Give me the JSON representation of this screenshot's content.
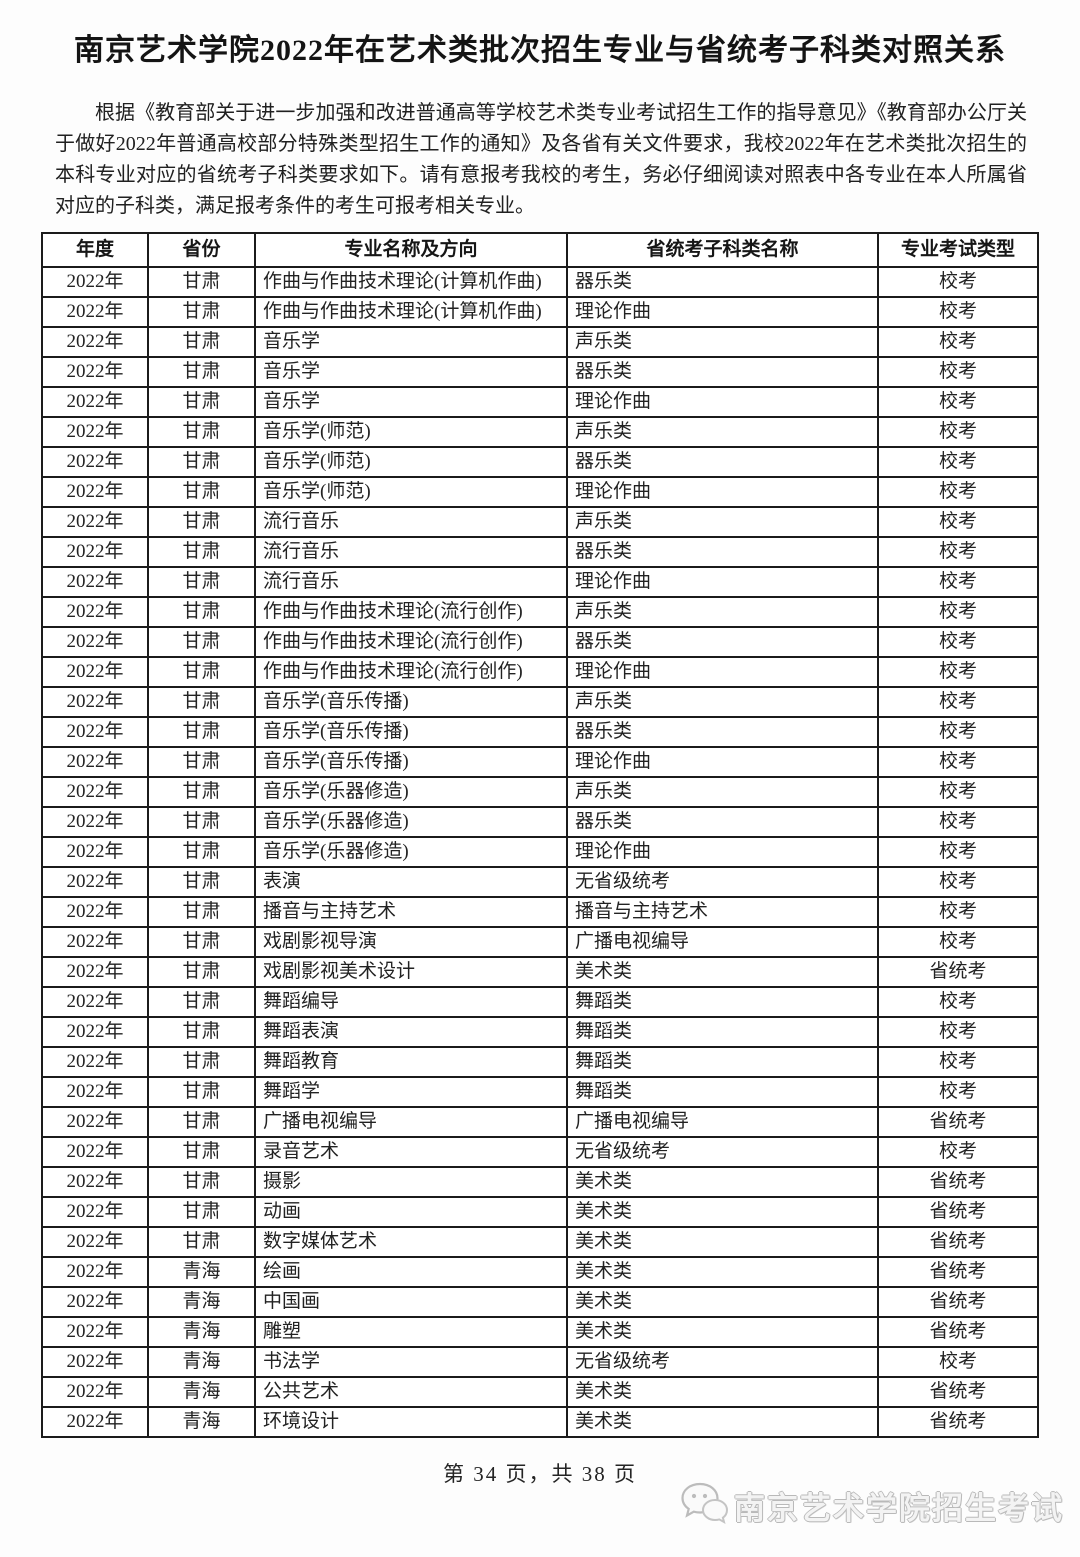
{
  "page": {
    "title": "南京艺术学院2022年在艺术类批次招生专业与省统考子科类对照关系",
    "intro": "根据《教育部关于进一步加强和改进普通高等学校艺术类专业考试招生工作的指导意见》《教育部办公厅关于做好2022年普通高校部分特殊类型招生工作的通知》及各省有关文件要求，我校2022年在艺术类批次招生的本科专业对应的省统考子科类要求如下。请有意报考我校的考生，务必仔细阅读对照表中各专业在本人所属省对应的子科类，满足报考条件的考生可报考相关专业。",
    "footer": "第 34 页，共 38 页",
    "watermark": {
      "icon": "wechat-icon",
      "text": "南京艺术学院招生考试",
      "color": "#bcbcbc"
    },
    "text_color": "#1c1c1c",
    "border_color": "#1b1b1b",
    "background_color": "#fdfdfd"
  },
  "table": {
    "headers": [
      "年度",
      "省份",
      "专业名称及方向",
      "省统考子科类名称",
      "专业考试类型"
    ],
    "rows": [
      [
        "2022年",
        "甘肃",
        "作曲与作曲技术理论(计算机作曲)",
        "器乐类",
        "校考"
      ],
      [
        "2022年",
        "甘肃",
        "作曲与作曲技术理论(计算机作曲)",
        "理论作曲",
        "校考"
      ],
      [
        "2022年",
        "甘肃",
        "音乐学",
        "声乐类",
        "校考"
      ],
      [
        "2022年",
        "甘肃",
        "音乐学",
        "器乐类",
        "校考"
      ],
      [
        "2022年",
        "甘肃",
        "音乐学",
        "理论作曲",
        "校考"
      ],
      [
        "2022年",
        "甘肃",
        "音乐学(师范)",
        "声乐类",
        "校考"
      ],
      [
        "2022年",
        "甘肃",
        "音乐学(师范)",
        "器乐类",
        "校考"
      ],
      [
        "2022年",
        "甘肃",
        "音乐学(师范)",
        "理论作曲",
        "校考"
      ],
      [
        "2022年",
        "甘肃",
        "流行音乐",
        "声乐类",
        "校考"
      ],
      [
        "2022年",
        "甘肃",
        "流行音乐",
        "器乐类",
        "校考"
      ],
      [
        "2022年",
        "甘肃",
        "流行音乐",
        "理论作曲",
        "校考"
      ],
      [
        "2022年",
        "甘肃",
        "作曲与作曲技术理论(流行创作)",
        "声乐类",
        "校考"
      ],
      [
        "2022年",
        "甘肃",
        "作曲与作曲技术理论(流行创作)",
        "器乐类",
        "校考"
      ],
      [
        "2022年",
        "甘肃",
        "作曲与作曲技术理论(流行创作)",
        "理论作曲",
        "校考"
      ],
      [
        "2022年",
        "甘肃",
        "音乐学(音乐传播)",
        "声乐类",
        "校考"
      ],
      [
        "2022年",
        "甘肃",
        "音乐学(音乐传播)",
        "器乐类",
        "校考"
      ],
      [
        "2022年",
        "甘肃",
        "音乐学(音乐传播)",
        "理论作曲",
        "校考"
      ],
      [
        "2022年",
        "甘肃",
        "音乐学(乐器修造)",
        "声乐类",
        "校考"
      ],
      [
        "2022年",
        "甘肃",
        "音乐学(乐器修造)",
        "器乐类",
        "校考"
      ],
      [
        "2022年",
        "甘肃",
        "音乐学(乐器修造)",
        "理论作曲",
        "校考"
      ],
      [
        "2022年",
        "甘肃",
        "表演",
        "无省级统考",
        "校考"
      ],
      [
        "2022年",
        "甘肃",
        "播音与主持艺术",
        "播音与主持艺术",
        "校考"
      ],
      [
        "2022年",
        "甘肃",
        "戏剧影视导演",
        "广播电视编导",
        "校考"
      ],
      [
        "2022年",
        "甘肃",
        "戏剧影视美术设计",
        "美术类",
        "省统考"
      ],
      [
        "2022年",
        "甘肃",
        "舞蹈编导",
        "舞蹈类",
        "校考"
      ],
      [
        "2022年",
        "甘肃",
        "舞蹈表演",
        "舞蹈类",
        "校考"
      ],
      [
        "2022年",
        "甘肃",
        "舞蹈教育",
        "舞蹈类",
        "校考"
      ],
      [
        "2022年",
        "甘肃",
        "舞蹈学",
        "舞蹈类",
        "校考"
      ],
      [
        "2022年",
        "甘肃",
        "广播电视编导",
        "广播电视编导",
        "省统考"
      ],
      [
        "2022年",
        "甘肃",
        "录音艺术",
        "无省级统考",
        "校考"
      ],
      [
        "2022年",
        "甘肃",
        "摄影",
        "美术类",
        "省统考"
      ],
      [
        "2022年",
        "甘肃",
        "动画",
        "美术类",
        "省统考"
      ],
      [
        "2022年",
        "甘肃",
        "数字媒体艺术",
        "美术类",
        "省统考"
      ],
      [
        "2022年",
        "青海",
        "绘画",
        "美术类",
        "省统考"
      ],
      [
        "2022年",
        "青海",
        "中国画",
        "美术类",
        "省统考"
      ],
      [
        "2022年",
        "青海",
        "雕塑",
        "美术类",
        "省统考"
      ],
      [
        "2022年",
        "青海",
        "书法学",
        "无省级统考",
        "校考"
      ],
      [
        "2022年",
        "青海",
        "公共艺术",
        "美术类",
        "省统考"
      ],
      [
        "2022年",
        "青海",
        "环境设计",
        "美术类",
        "省统考"
      ]
    ]
  }
}
